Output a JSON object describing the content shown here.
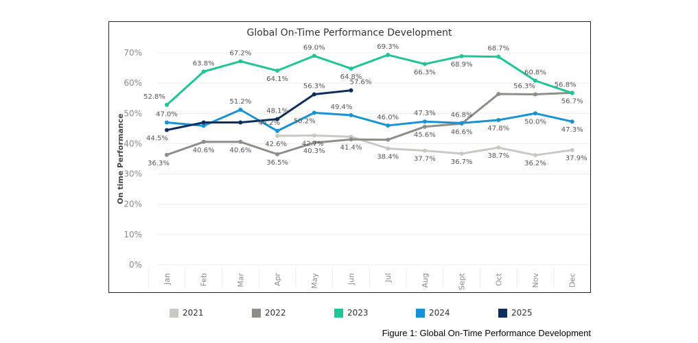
{
  "colors": {
    "2021": "#c9c9c4",
    "2022": "#8e8e88",
    "2023": "#1fc497",
    "2024": "#1693d6",
    "2025": "#0c2e5c",
    "grid": "#ececec",
    "axis_text": "#8a8a8a",
    "label_text": "#555555"
  },
  "chart_data": {
    "type": "line",
    "title": "Global On-Time Performance Development",
    "xlabel": "",
    "ylabel": "On time Performance",
    "ylim": [
      0,
      70
    ],
    "yticks": [
      "0%",
      "10%",
      "20%",
      "30%",
      "40%",
      "50%",
      "60%",
      "70%"
    ],
    "categories": [
      "Jan",
      "Feb",
      "Mar",
      "Apr",
      "May",
      "Jun",
      "Jul",
      "Aug",
      "Sept",
      "Oct",
      "Nov",
      "Dec"
    ],
    "grid": true,
    "legend_position": "bottom",
    "series": [
      {
        "name": "2021",
        "values": [
          null,
          null,
          null,
          42.6,
          42.7,
          42.3,
          38.4,
          37.7,
          36.7,
          38.7,
          36.2,
          37.9
        ],
        "labels": [
          "",
          "",
          "",
          "42.6%",
          "42.7%",
          "",
          "38.4%",
          "37.7%",
          "36.7%",
          "38.7%",
          "36.2%",
          "37.9%"
        ]
      },
      {
        "name": "2022",
        "values": [
          36.3,
          40.6,
          40.6,
          36.5,
          40.3,
          41.4,
          41.3,
          45.6,
          46.6,
          56.4,
          56.3,
          56.8
        ],
        "labels": [
          "36.3%",
          "40.6%",
          "40.6%",
          "36.5%",
          "40.3%",
          "41.4%",
          "",
          "45.6%",
          "46.6%",
          "",
          "56.3%",
          "56.8%"
        ]
      },
      {
        "name": "2023",
        "values": [
          52.8,
          63.8,
          67.2,
          64.1,
          69.0,
          64.8,
          69.3,
          66.3,
          68.9,
          68.7,
          60.8,
          56.7
        ],
        "labels": [
          "52.8%",
          "63.8%",
          "67.2%",
          "64.1%",
          "69.0%",
          "64.8%",
          "69.3%",
          "66.3%",
          "68.9%",
          "68.7%",
          "60.8%",
          "56.7%"
        ]
      },
      {
        "name": "2024",
        "values": [
          47.0,
          45.9,
          51.2,
          44.2,
          50.2,
          49.4,
          46.0,
          47.3,
          46.8,
          47.8,
          50.0,
          47.3
        ],
        "labels": [
          "47.0%",
          "",
          "51.2%",
          "44.2%",
          "50.2%",
          "49.4%",
          "46.0%",
          "47.3%",
          "46.8%",
          "47.8%",
          "50.0%",
          "47.3%"
        ]
      },
      {
        "name": "2025",
        "values": [
          44.5,
          47.0,
          47.0,
          48.1,
          56.3,
          57.6,
          null,
          null,
          null,
          null,
          null,
          null
        ],
        "labels": [
          "44.5%",
          "",
          "",
          "48.1%",
          "56.3%",
          "57.6%",
          "",
          "",
          "",
          "",
          "",
          ""
        ]
      }
    ]
  },
  "legend": [
    {
      "name": "2021",
      "color": "#c9c9c4"
    },
    {
      "name": "2022",
      "color": "#8e8e88"
    },
    {
      "name": "2023",
      "color": "#1fc497"
    },
    {
      "name": "2024",
      "color": "#1693d6"
    },
    {
      "name": "2025",
      "color": "#0c2e5c"
    }
  ],
  "caption": "Figure 1: Global On-Time Performance Development"
}
